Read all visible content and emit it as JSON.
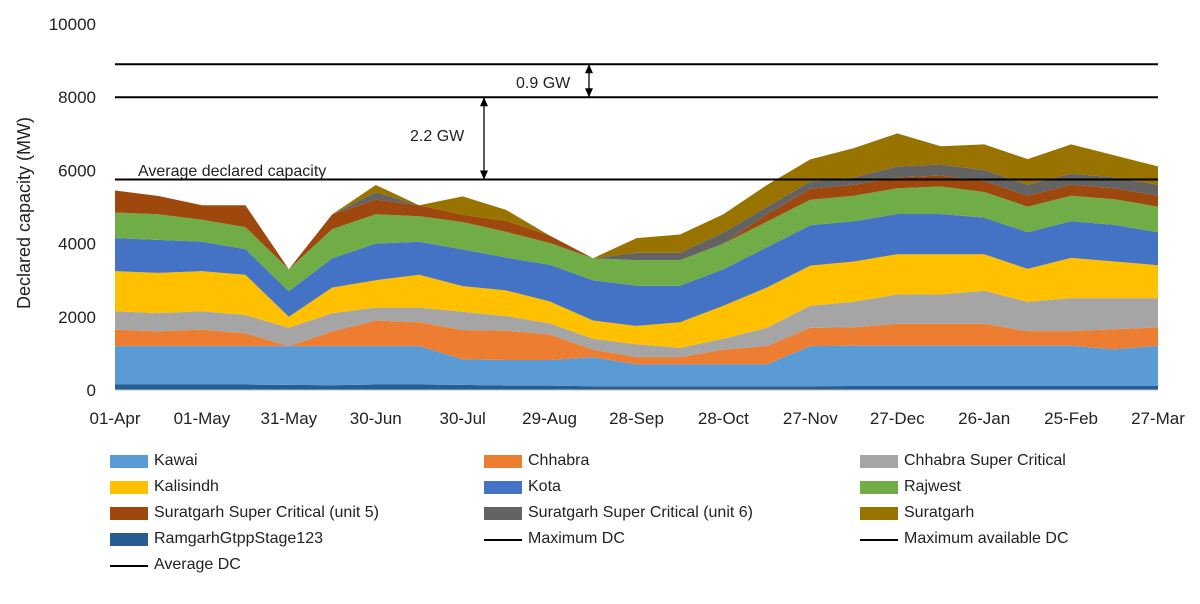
{
  "chart_data": {
    "type": "area",
    "stacked": true,
    "ylabel": "Declared capacity (MW)",
    "ylim": [
      0,
      10000
    ],
    "yticks": [
      0,
      2000,
      4000,
      6000,
      8000,
      10000
    ],
    "xlim": [
      0,
      360
    ],
    "xticks": [
      {
        "label": "01-Apr",
        "x": 0
      },
      {
        "label": "01-May",
        "x": 30
      },
      {
        "label": "31-May",
        "x": 60
      },
      {
        "label": "30-Jun",
        "x": 90
      },
      {
        "label": "30-Jul",
        "x": 120
      },
      {
        "label": "29-Aug",
        "x": 150
      },
      {
        "label": "28-Sep",
        "x": 180
      },
      {
        "label": "28-Oct",
        "x": 210
      },
      {
        "label": "27-Nov",
        "x": 240
      },
      {
        "label": "27-Dec",
        "x": 270
      },
      {
        "label": "26-Jan",
        "x": 300
      },
      {
        "label": "25-Feb",
        "x": 330
      },
      {
        "label": "27-Mar",
        "x": 360
      }
    ],
    "x": [
      0,
      15,
      30,
      45,
      60,
      75,
      90,
      105,
      120,
      135,
      150,
      165,
      180,
      195,
      210,
      225,
      240,
      255,
      270,
      285,
      300,
      315,
      330,
      345,
      360
    ],
    "series": [
      {
        "name": "RamgarhGtppStage123",
        "color": "#255E91",
        "values": [
          150,
          150,
          150,
          150,
          140,
          130,
          150,
          150,
          140,
          120,
          120,
          100,
          100,
          100,
          100,
          100,
          100,
          110,
          110,
          110,
          110,
          110,
          110,
          110,
          110
        ]
      },
      {
        "name": "Kawai",
        "color": "#5B9BD5",
        "values": [
          1050,
          1050,
          1050,
          1050,
          1060,
          1070,
          1050,
          1050,
          700,
          700,
          700,
          800,
          600,
          600,
          600,
          600,
          1100,
          1100,
          1100,
          1100,
          1100,
          1100,
          1100,
          1000,
          1100
        ]
      },
      {
        "name": "Chhabra",
        "color": "#ED7D31",
        "values": [
          450,
          400,
          450,
          350,
          0,
          400,
          700,
          650,
          800,
          800,
          700,
          200,
          200,
          200,
          400,
          500,
          500,
          500,
          600,
          600,
          600,
          400,
          400,
          550,
          500
        ]
      },
      {
        "name": "Chhabra Super Critical",
        "color": "#A5A5A5",
        "values": [
          500,
          500,
          500,
          500,
          500,
          500,
          350,
          400,
          500,
          400,
          300,
          300,
          350,
          250,
          300,
          500,
          600,
          700,
          800,
          800,
          900,
          800,
          900,
          850,
          800
        ]
      },
      {
        "name": "Kalisindh",
        "color": "#FFC000",
        "values": [
          1100,
          1100,
          1100,
          1100,
          300,
          700,
          750,
          900,
          700,
          700,
          600,
          500,
          500,
          700,
          900,
          1100,
          1100,
          1100,
          1100,
          1100,
          1000,
          900,
          1100,
          1000,
          900
        ]
      },
      {
        "name": "Kota",
        "color": "#4472C4",
        "values": [
          900,
          900,
          800,
          700,
          700,
          800,
          1000,
          900,
          1000,
          900,
          1000,
          1100,
          1100,
          1000,
          1000,
          1100,
          1100,
          1100,
          1100,
          1100,
          1000,
          1000,
          1000,
          1000,
          900
        ]
      },
      {
        "name": "Rajwest",
        "color": "#70AD47",
        "values": [
          700,
          700,
          600,
          600,
          600,
          800,
          800,
          700,
          750,
          700,
          600,
          600,
          700,
          700,
          700,
          700,
          700,
          700,
          700,
          750,
          700,
          700,
          700,
          700,
          700
        ]
      },
      {
        "name": "Suratgarh Super Critical (unit 5)",
        "color": "#9E480E",
        "values": [
          600,
          500,
          400,
          600,
          0,
          400,
          400,
          300,
          200,
          300,
          200,
          0,
          0,
          0,
          0,
          200,
          300,
          300,
          300,
          300,
          300,
          300,
          300,
          300,
          300
        ]
      },
      {
        "name": "Suratgarh Super Critical (unit 6)",
        "color": "#636363",
        "values": [
          0,
          0,
          0,
          0,
          0,
          0,
          200,
          0,
          0,
          0,
          0,
          0,
          200,
          200,
          300,
          200,
          200,
          200,
          300,
          300,
          300,
          300,
          300,
          300,
          300
        ]
      },
      {
        "name": "Suratgarh",
        "color": "#997300",
        "values": [
          0,
          0,
          0,
          0,
          0,
          0,
          200,
          0,
          500,
          300,
          0,
          0,
          400,
          500,
          500,
          600,
          600,
          800,
          900,
          500,
          700,
          700,
          800,
          600,
          500
        ]
      }
    ],
    "reference_lines": [
      {
        "name": "Maximum DC",
        "value": 8000
      },
      {
        "name": "Maximum available DC",
        "value": 8900
      },
      {
        "name": "Average DC",
        "value": 5750
      }
    ],
    "annotations": {
      "average_label": "Average declared capacity",
      "gap1_label": "2.2 GW",
      "gap2_label": "0.9 GW"
    },
    "legend_position": "bottom"
  }
}
